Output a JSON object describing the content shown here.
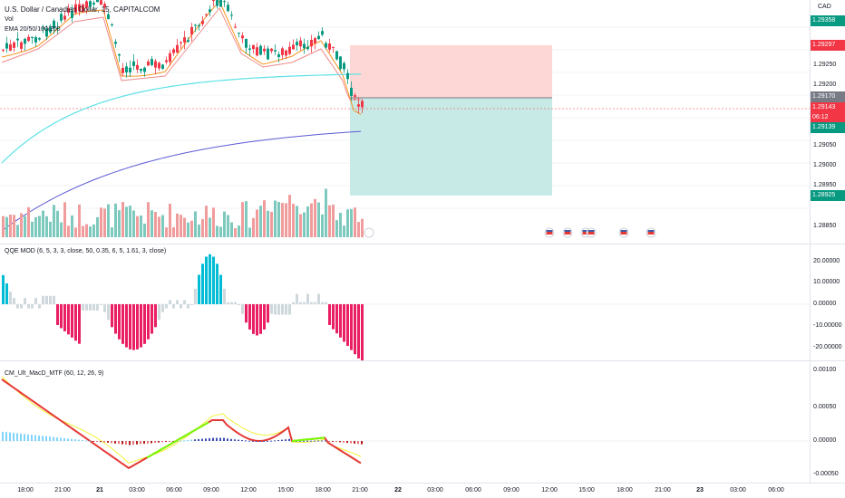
{
  "header": {
    "title": "U.S. Dollar / Canadian Dollar, 15, CAPITALCOM",
    "vol_label": "Vol",
    "ema_label": "EMA 20/50/100/200"
  },
  "panes": {
    "qqe": {
      "label": "QQE MOD (6, 5, 3, 3, close, 50, 0.35, 6, 5, 1.61, 3, close)"
    },
    "macd": {
      "label": "CM_Ult_MacD_MTF (60, 12, 26, 9)"
    }
  },
  "price_axis": {
    "currency": "CAD",
    "ticks": [
      "1.29250",
      "1.29200",
      "1.29050",
      "1.29000",
      "1.28950",
      "1.28850"
    ],
    "tags": [
      {
        "text": "1.29358",
        "color": "#089981"
      },
      {
        "text": "1.29297",
        "color": "#f23645"
      },
      {
        "text": "1.29170",
        "color": "#787b86"
      },
      {
        "text": "1.29143",
        "color": "#f23645"
      },
      {
        "text": "06:12",
        "color": "#f23645"
      },
      {
        "text": "1.29139",
        "color": "#089981"
      },
      {
        "text": "1.28925",
        "color": "#089981"
      }
    ]
  },
  "qqe_axis": [
    "20.00000",
    "10.00000",
    "0.00000",
    "-10.00000",
    "-20.00000"
  ],
  "macd_axis": [
    "0.00100",
    "0.00050",
    "0.00000",
    "-0.00050"
  ],
  "time_axis": [
    "18:00",
    "21:00",
    "21",
    "03:00",
    "06:00",
    "09:00",
    "12:00",
    "15:00",
    "18:00",
    "21:00",
    "22",
    "03:00",
    "06:00",
    "09:00",
    "12:00",
    "15:00",
    "18:00",
    "21:00",
    "23",
    "03:00",
    "06:00"
  ],
  "colors": {
    "bull": "#089981",
    "bear": "#f23645",
    "qqe_pos": "#00bcd4",
    "qqe_neg": "#e91e63",
    "stop_zone": "#fcd7d5",
    "target_zone": "#c8eae6"
  },
  "events": {
    "icon": "us-flag-icon",
    "count": 6
  }
}
